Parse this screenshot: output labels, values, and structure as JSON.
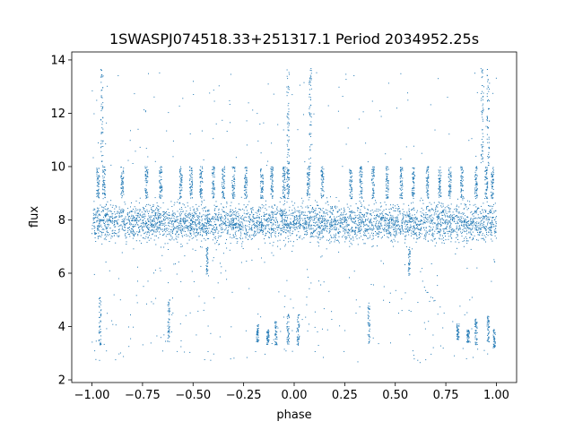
{
  "chart_data": {
    "type": "scatter",
    "title": "1SWASPJ074518.33+251317.1 Period 2034952.25s",
    "xlabel": "phase",
    "ylabel": "flux",
    "xlim": [
      -1.1,
      1.1
    ],
    "ylim": [
      1.9,
      14.3
    ],
    "xticks": [
      -1.0,
      -0.75,
      -0.5,
      -0.25,
      0.0,
      0.25,
      0.5,
      0.75,
      1.0
    ],
    "xtick_labels": [
      "−1.00",
      "−0.75",
      "−0.50",
      "−0.25",
      "0.00",
      "0.25",
      "0.50",
      "0.75",
      "1.00"
    ],
    "yticks": [
      2,
      4,
      6,
      8,
      10,
      12,
      14
    ],
    "ytick_labels": [
      "2",
      "4",
      "6",
      "8",
      "10",
      "12",
      "14"
    ],
    "grid": false,
    "marker_color": "#1f77b4",
    "series": [
      {
        "x_range": [
          -1.0,
          1.0
        ],
        "baseline_flux": 7.9,
        "baseline_spread": [
          7.0,
          8.8
        ],
        "bright_bands_flux": [
          9.1,
          10.0
        ],
        "bright_band_phases": [
          -0.97,
          -0.94,
          -0.85,
          -0.73,
          -0.66,
          -0.56,
          -0.51,
          -0.46,
          -0.4,
          -0.35,
          -0.3,
          -0.24,
          -0.16,
          -0.11,
          -0.05,
          -0.03,
          0.07,
          0.14,
          0.28,
          0.33,
          0.39,
          0.46,
          0.53,
          0.59,
          0.66,
          0.72,
          0.77,
          0.83,
          0.9,
          0.95,
          0.98
        ],
        "tall_spike_phases": [
          -0.95,
          -0.03,
          0.08,
          0.93,
          0.96
        ],
        "tall_spike_max_flux": 13.7,
        "low_dips": [
          {
            "phase": -0.96,
            "flux": [
              3.3,
              5.1
            ]
          },
          {
            "phase": -0.62,
            "flux": [
              3.4,
              5.0
            ]
          },
          {
            "phase": -0.18,
            "flux": [
              3.4,
              4.1
            ]
          },
          {
            "phase": -0.13,
            "flux": [
              3.3,
              3.9
            ]
          },
          {
            "phase": -0.09,
            "flux": [
              3.3,
              4.2
            ]
          },
          {
            "phase": -0.03,
            "flux": [
              3.3,
              4.5
            ]
          },
          {
            "phase": 0.02,
            "flux": [
              3.3,
              4.5
            ]
          },
          {
            "phase": 0.37,
            "flux": [
              3.3,
              4.9
            ]
          },
          {
            "phase": 0.81,
            "flux": [
              3.5,
              4.1
            ]
          },
          {
            "phase": 0.86,
            "flux": [
              3.4,
              3.9
            ]
          },
          {
            "phase": 0.9,
            "flux": [
              3.3,
              4.3
            ]
          },
          {
            "phase": 0.96,
            "flux": [
              3.4,
              4.4
            ]
          },
          {
            "phase": 0.99,
            "flux": [
              3.2,
              3.9
            ]
          }
        ],
        "mid_dips": [
          {
            "phase": -0.43,
            "flux": [
              5.9,
              7.0
            ]
          },
          {
            "phase": 0.57,
            "flux": [
              5.9,
              7.0
            ]
          }
        ]
      }
    ]
  }
}
